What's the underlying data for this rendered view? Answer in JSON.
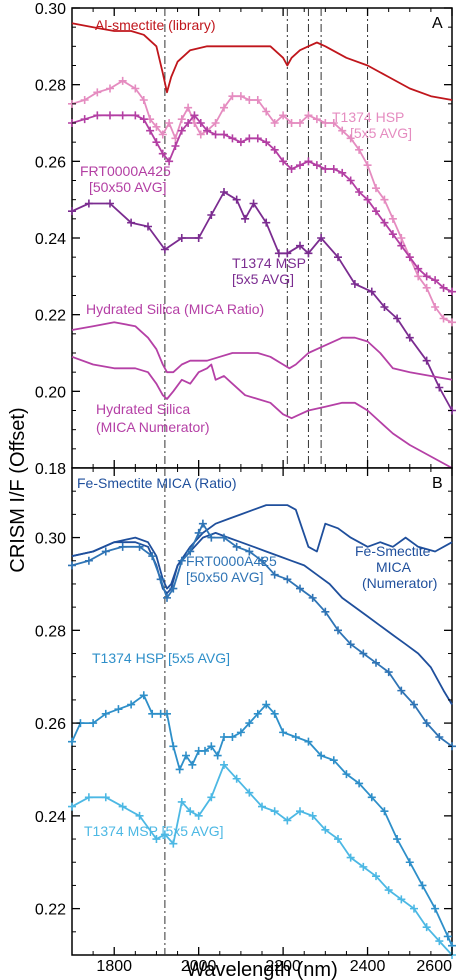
{
  "figure": {
    "ylabel": "CRISM I/F (Offset)",
    "xlabel": "Wavelength (nm)"
  },
  "chart_data": [
    {
      "panel": "A",
      "type": "line",
      "xlim": [
        1700,
        2600
      ],
      "ylim": [
        0.18,
        0.3
      ],
      "xticks": [
        1800,
        2000,
        2200,
        2400,
        2600
      ],
      "yticks": [
        0.18,
        0.2,
        0.22,
        0.24,
        0.26,
        0.28,
        0.3
      ],
      "reference_lines_x": [
        1920,
        2210,
        2260,
        2290,
        2400
      ],
      "series": [
        {
          "name": "Al-smectite (library)",
          "color": "#c0161c",
          "marker": "none",
          "x": [
            1700,
            1750,
            1800,
            1840,
            1870,
            1900,
            1915,
            1925,
            1935,
            1950,
            1980,
            2020,
            2060,
            2100,
            2140,
            2170,
            2200,
            2210,
            2220,
            2240,
            2260,
            2280,
            2300,
            2350,
            2400,
            2450,
            2500,
            2550,
            2600
          ],
          "y": [
            0.296,
            0.295,
            0.294,
            0.294,
            0.293,
            0.29,
            0.283,
            0.278,
            0.282,
            0.286,
            0.289,
            0.29,
            0.29,
            0.29,
            0.29,
            0.29,
            0.287,
            0.285,
            0.287,
            0.289,
            0.29,
            0.291,
            0.29,
            0.287,
            0.285,
            0.282,
            0.279,
            0.277,
            0.276
          ]
        },
        {
          "name": "T1374 HSP [5x5 AVG]",
          "color": "#e58cc0",
          "marker": "plus",
          "x": [
            1700,
            1730,
            1760,
            1790,
            1820,
            1850,
            1870,
            1885,
            1900,
            1915,
            1930,
            1945,
            1960,
            1975,
            1990,
            2005,
            2020,
            2040,
            2060,
            2080,
            2100,
            2120,
            2140,
            2160,
            2180,
            2200,
            2220,
            2240,
            2260,
            2280,
            2300,
            2320,
            2340,
            2360,
            2380,
            2400,
            2420,
            2440,
            2460,
            2480,
            2500,
            2520,
            2540,
            2560,
            2580,
            2600
          ],
          "y": [
            0.275,
            0.276,
            0.278,
            0.279,
            0.281,
            0.279,
            0.276,
            0.271,
            0.269,
            0.267,
            0.27,
            0.266,
            0.271,
            0.274,
            0.27,
            0.267,
            0.268,
            0.27,
            0.274,
            0.277,
            0.277,
            0.276,
            0.276,
            0.273,
            0.27,
            0.272,
            0.27,
            0.27,
            0.272,
            0.271,
            0.27,
            0.27,
            0.268,
            0.266,
            0.263,
            0.259,
            0.253,
            0.25,
            0.245,
            0.24,
            0.235,
            0.23,
            0.227,
            0.222,
            0.219,
            0.218
          ]
        },
        {
          "name": "FRT0000A425 [50x50 AVG]",
          "color": "#b33fa3",
          "marker": "plus",
          "x": [
            1700,
            1730,
            1760,
            1790,
            1820,
            1850,
            1870,
            1885,
            1900,
            1915,
            1930,
            1945,
            1960,
            1975,
            1990,
            2005,
            2020,
            2040,
            2060,
            2080,
            2100,
            2120,
            2140,
            2160,
            2180,
            2200,
            2220,
            2240,
            2260,
            2280,
            2300,
            2320,
            2340,
            2360,
            2380,
            2400,
            2420,
            2440,
            2460,
            2480,
            2500,
            2520,
            2540,
            2560,
            2580,
            2600
          ],
          "y": [
            0.27,
            0.271,
            0.272,
            0.272,
            0.272,
            0.272,
            0.271,
            0.268,
            0.265,
            0.262,
            0.26,
            0.264,
            0.268,
            0.27,
            0.272,
            0.27,
            0.268,
            0.267,
            0.267,
            0.266,
            0.265,
            0.266,
            0.266,
            0.265,
            0.263,
            0.26,
            0.258,
            0.259,
            0.26,
            0.259,
            0.258,
            0.258,
            0.257,
            0.255,
            0.252,
            0.25,
            0.247,
            0.244,
            0.241,
            0.238,
            0.235,
            0.232,
            0.23,
            0.229,
            0.227,
            0.226
          ]
        },
        {
          "name": "T1374 MSP [5x5 AVG]",
          "color": "#7b2c90",
          "marker": "plus",
          "x": [
            1700,
            1740,
            1790,
            1840,
            1880,
            1920,
            1960,
            2000,
            2030,
            2060,
            2090,
            2110,
            2130,
            2160,
            2190,
            2210,
            2240,
            2260,
            2290,
            2330,
            2370,
            2410,
            2440,
            2470,
            2500,
            2540,
            2570,
            2600
          ],
          "y": [
            0.247,
            0.249,
            0.249,
            0.244,
            0.243,
            0.237,
            0.24,
            0.24,
            0.246,
            0.252,
            0.25,
            0.245,
            0.249,
            0.244,
            0.236,
            0.236,
            0.238,
            0.236,
            0.24,
            0.235,
            0.228,
            0.226,
            0.222,
            0.219,
            0.214,
            0.208,
            0.201,
            0.195
          ]
        },
        {
          "name": "Hydrated Silica (MICA Ratio)",
          "color": "#b540a6",
          "marker": "none",
          "x": [
            1700,
            1750,
            1800,
            1850,
            1880,
            1900,
            1915,
            1925,
            1940,
            1960,
            1980,
            2000,
            2020,
            2050,
            2080,
            2110,
            2140,
            2170,
            2200,
            2215,
            2230,
            2260,
            2300,
            2340,
            2370,
            2400,
            2430,
            2460,
            2500,
            2550,
            2600
          ],
          "y": [
            0.216,
            0.217,
            0.218,
            0.217,
            0.214,
            0.211,
            0.207,
            0.205,
            0.205,
            0.207,
            0.208,
            0.208,
            0.208,
            0.209,
            0.21,
            0.21,
            0.21,
            0.209,
            0.207,
            0.206,
            0.207,
            0.21,
            0.212,
            0.214,
            0.214,
            0.213,
            0.21,
            0.206,
            0.205,
            0.204,
            0.203
          ]
        },
        {
          "name": "Hydrated Silica (MICA Numerator)",
          "color": "#b540a6",
          "marker": "none",
          "x": [
            1700,
            1750,
            1800,
            1850,
            1880,
            1900,
            1915,
            1925,
            1940,
            1960,
            1980,
            2000,
            2020,
            2030,
            2040,
            2060,
            2080,
            2110,
            2140,
            2170,
            2200,
            2220,
            2240,
            2260,
            2300,
            2340,
            2370,
            2400,
            2430,
            2460,
            2500,
            2550,
            2600
          ],
          "y": [
            0.209,
            0.207,
            0.206,
            0.206,
            0.205,
            0.202,
            0.199,
            0.198,
            0.2,
            0.203,
            0.202,
            0.205,
            0.206,
            0.207,
            0.203,
            0.204,
            0.202,
            0.199,
            0.198,
            0.197,
            0.194,
            0.193,
            0.194,
            0.195,
            0.196,
            0.197,
            0.197,
            0.195,
            0.192,
            0.189,
            0.186,
            0.183,
            0.18
          ]
        }
      ],
      "annotations": [
        {
          "text": "Al-smectite (library)",
          "color": "#c0161c"
        },
        {
          "text": "T1374 HSP",
          "color": "#e58cc0"
        },
        {
          "text": "[5x5 AVG]",
          "color": "#e58cc0"
        },
        {
          "text": "FRT0000A425",
          "color": "#b33fa3"
        },
        {
          "text": "[50x50 AVG]",
          "color": "#b33fa3"
        },
        {
          "text": "T1374 MSP",
          "color": "#7b2c90"
        },
        {
          "text": "[5x5 AVG]",
          "color": "#7b2c90"
        },
        {
          "text": "Hydrated Silica (MICA Ratio)",
          "color": "#b540a6"
        },
        {
          "text": "Hydrated Silica",
          "color": "#b540a6"
        },
        {
          "text": "(MICA Numerator)",
          "color": "#b540a6"
        }
      ]
    },
    {
      "panel": "B",
      "type": "line",
      "xlim": [
        1700,
        2600
      ],
      "ylim": [
        0.21,
        0.315
      ],
      "xticks": [
        1800,
        2000,
        2200,
        2400,
        2600
      ],
      "yticks": [
        0.22,
        0.24,
        0.26,
        0.28,
        0.3
      ],
      "reference_lines_x": [
        1920
      ],
      "series": [
        {
          "name": "Fe-Smectite MICA (Ratio)",
          "color": "#1f4f9c",
          "marker": "none",
          "x": [
            1700,
            1750,
            1800,
            1850,
            1880,
            1900,
            1915,
            1925,
            1935,
            1950,
            1980,
            2010,
            2040,
            2070,
            2100,
            2130,
            2160,
            2190,
            2210,
            2230,
            2245,
            2260,
            2280,
            2300,
            2330,
            2360,
            2400,
            2430,
            2460,
            2490,
            2520,
            2560,
            2600
          ],
          "y": [
            0.296,
            0.297,
            0.299,
            0.3,
            0.299,
            0.296,
            0.291,
            0.289,
            0.29,
            0.294,
            0.298,
            0.301,
            0.303,
            0.304,
            0.305,
            0.306,
            0.307,
            0.307,
            0.307,
            0.306,
            0.302,
            0.298,
            0.297,
            0.303,
            0.302,
            0.3,
            0.298,
            0.299,
            0.298,
            0.3,
            0.298,
            0.297,
            0.299
          ]
        },
        {
          "name": "Fe-Smectite MICA (Numerator)",
          "color": "#1f4f9c",
          "marker": "none",
          "x": [
            1700,
            1750,
            1800,
            1850,
            1880,
            1900,
            1915,
            1925,
            1935,
            1950,
            1980,
            2010,
            2040,
            2070,
            2100,
            2130,
            2160,
            2190,
            2220,
            2250,
            2280,
            2310,
            2340,
            2370,
            2400,
            2430,
            2460,
            2490,
            2520,
            2550,
            2580,
            2600
          ],
          "y": [
            0.296,
            0.297,
            0.299,
            0.299,
            0.298,
            0.294,
            0.289,
            0.288,
            0.289,
            0.294,
            0.297,
            0.3,
            0.301,
            0.3,
            0.299,
            0.298,
            0.297,
            0.296,
            0.295,
            0.294,
            0.292,
            0.29,
            0.287,
            0.285,
            0.283,
            0.281,
            0.279,
            0.277,
            0.275,
            0.272,
            0.267,
            0.264
          ]
        },
        {
          "name": "FRT0000A425 [50x50 AVG]",
          "color": "#2f74b5",
          "marker": "plus",
          "x": [
            1700,
            1740,
            1780,
            1820,
            1860,
            1890,
            1910,
            1925,
            1940,
            1960,
            1980,
            2000,
            2010,
            2030,
            2060,
            2090,
            2120,
            2150,
            2180,
            2210,
            2240,
            2270,
            2300,
            2330,
            2360,
            2390,
            2420,
            2450,
            2480,
            2510,
            2540,
            2570,
            2600
          ],
          "y": [
            0.294,
            0.295,
            0.297,
            0.298,
            0.298,
            0.296,
            0.291,
            0.287,
            0.289,
            0.295,
            0.297,
            0.301,
            0.303,
            0.3,
            0.3,
            0.298,
            0.297,
            0.295,
            0.292,
            0.291,
            0.289,
            0.287,
            0.284,
            0.28,
            0.277,
            0.275,
            0.273,
            0.271,
            0.267,
            0.264,
            0.26,
            0.257,
            0.255
          ]
        },
        {
          "name": "T1374 HSP [5x5 AVG]",
          "color": "#2e8fc9",
          "marker": "plus",
          "x": [
            1700,
            1720,
            1750,
            1780,
            1810,
            1840,
            1870,
            1890,
            1910,
            1925,
            1940,
            1955,
            1970,
            1985,
            2000,
            2015,
            2030,
            2045,
            2060,
            2080,
            2100,
            2120,
            2140,
            2160,
            2180,
            2200,
            2230,
            2260,
            2290,
            2320,
            2350,
            2380,
            2410,
            2440,
            2470,
            2500,
            2530,
            2560,
            2590,
            2600
          ],
          "y": [
            0.256,
            0.26,
            0.26,
            0.262,
            0.263,
            0.264,
            0.266,
            0.262,
            0.262,
            0.262,
            0.255,
            0.25,
            0.253,
            0.251,
            0.254,
            0.254,
            0.255,
            0.253,
            0.257,
            0.257,
            0.258,
            0.26,
            0.262,
            0.264,
            0.262,
            0.258,
            0.257,
            0.256,
            0.253,
            0.252,
            0.249,
            0.247,
            0.244,
            0.241,
            0.235,
            0.23,
            0.225,
            0.22,
            0.214,
            0.212
          ]
        },
        {
          "name": "T1374 MSP [5x5 AVG]",
          "color": "#4cb8e4",
          "marker": "plus",
          "x": [
            1700,
            1740,
            1780,
            1820,
            1860,
            1900,
            1920,
            1940,
            1960,
            1980,
            2000,
            2030,
            2060,
            2090,
            2120,
            2150,
            2180,
            2210,
            2240,
            2270,
            2300,
            2330,
            2360,
            2390,
            2420,
            2450,
            2480,
            2510,
            2540,
            2570,
            2600
          ],
          "y": [
            0.242,
            0.244,
            0.244,
            0.242,
            0.24,
            0.235,
            0.236,
            0.234,
            0.243,
            0.241,
            0.24,
            0.244,
            0.251,
            0.248,
            0.245,
            0.242,
            0.241,
            0.239,
            0.241,
            0.24,
            0.237,
            0.235,
            0.231,
            0.229,
            0.227,
            0.224,
            0.222,
            0.22,
            0.216,
            0.213,
            0.21
          ]
        }
      ],
      "annotations": [
        {
          "text": "Fe-Smectite MICA (Ratio)",
          "color": "#1f4f9c"
        },
        {
          "text": "Fe-Smectite",
          "color": "#1f4f9c"
        },
        {
          "text": "MICA",
          "color": "#1f4f9c"
        },
        {
          "text": "(Numerator)",
          "color": "#1f4f9c"
        },
        {
          "text": "FRT0000A425",
          "color": "#2f74b5"
        },
        {
          "text": "[50x50 AVG]",
          "color": "#2f74b5"
        },
        {
          "text": "T1374 HSP [5x5 AVG]",
          "color": "#2e8fc9"
        },
        {
          "text": "T1374 MSP [5x5 AVG]",
          "color": "#4cb8e4"
        }
      ]
    }
  ]
}
